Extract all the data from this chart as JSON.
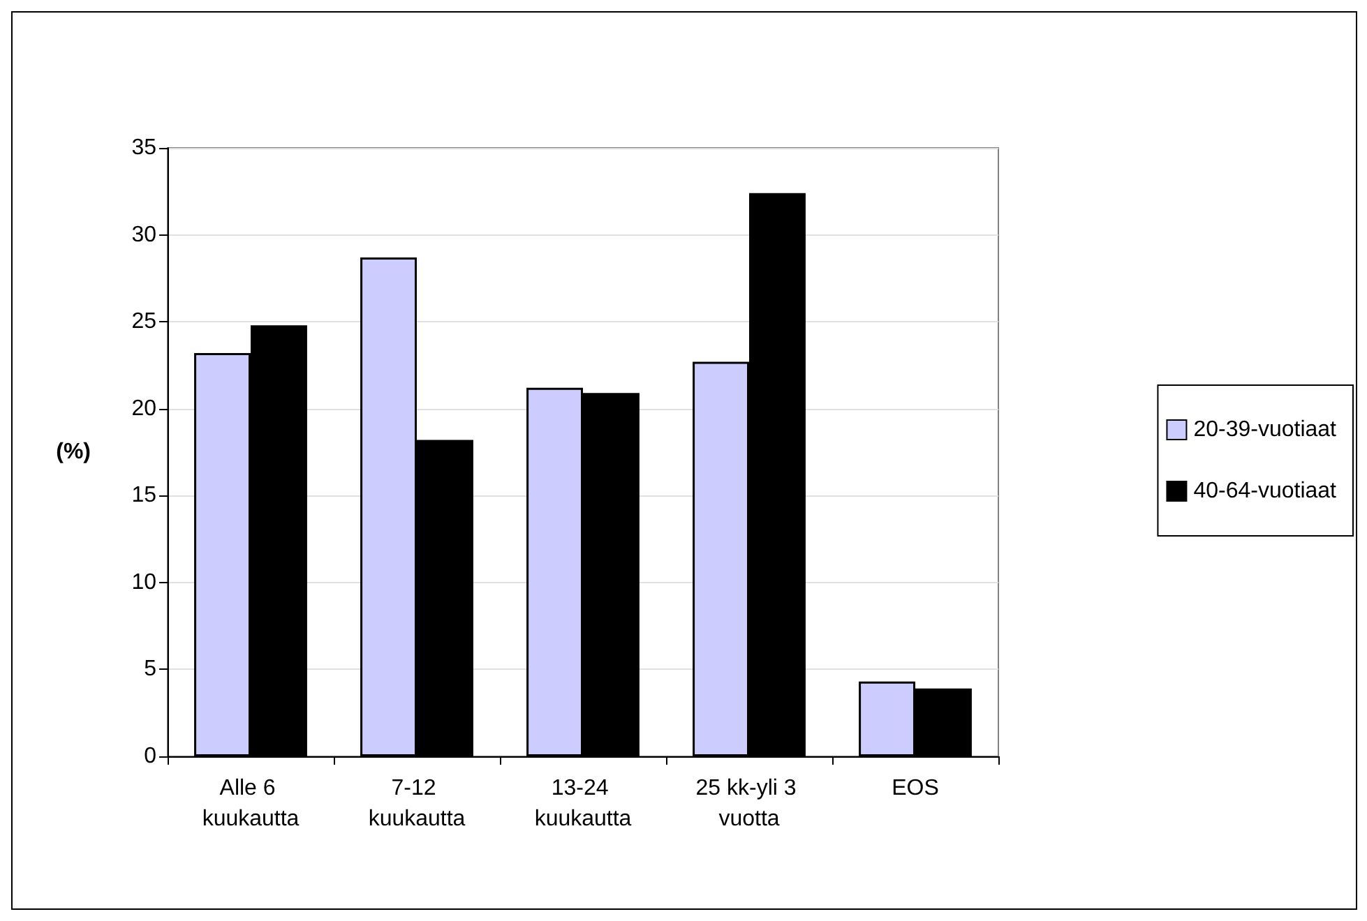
{
  "chart_data": {
    "type": "bar",
    "ylabel": "(%)",
    "categories": [
      "Alle 6 kuukautta",
      "7-12 kuukautta",
      "13-24 kuukautta",
      "25 kk-yli 3 vuotta",
      "EOS"
    ],
    "series": [
      {
        "name": "20-39-vuotiaat",
        "color": "#ccccff",
        "values": [
          23.2,
          28.7,
          21.2,
          22.7,
          4.3
        ]
      },
      {
        "name": "40-64-vuotiaat",
        "color": "#000000",
        "values": [
          24.8,
          18.2,
          20.9,
          32.4,
          3.9
        ]
      }
    ],
    "ylim": [
      0,
      35
    ],
    "yticks": [
      0,
      5,
      10,
      15,
      20,
      25,
      30,
      35
    ],
    "grid": "y",
    "legend": "right"
  }
}
